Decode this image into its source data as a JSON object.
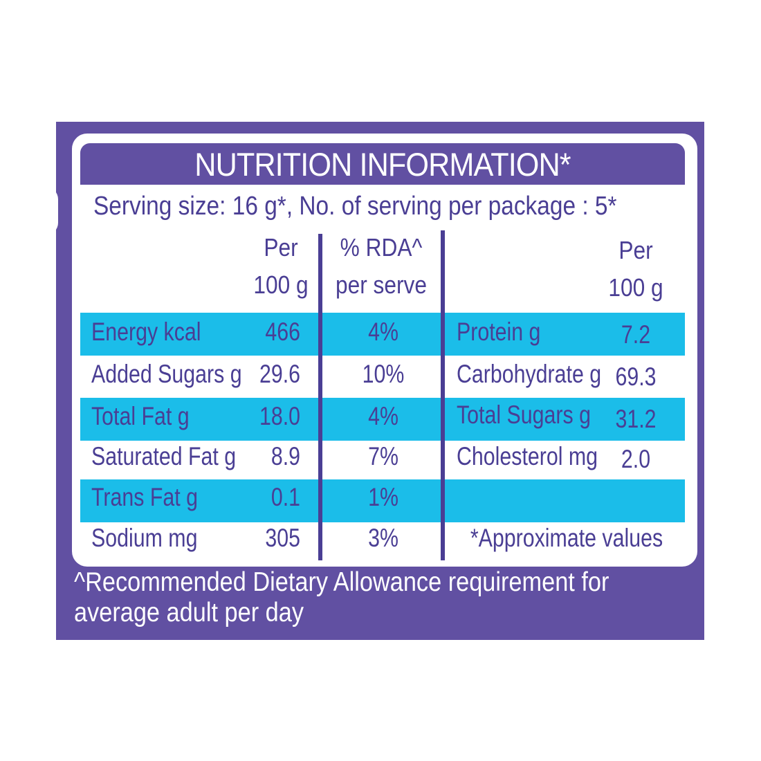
{
  "title": "NUTRITION INFORMATION*",
  "serving": "Serving size: 16 g*, No. of serving per package : 5*",
  "headers": {
    "left_per_1": "Per",
    "left_per_2": "100 g",
    "rda_1": "% RDA^",
    "rda_2": "per serve",
    "right_per_1": "Per",
    "right_per_2": "100 g"
  },
  "left_rows": [
    {
      "label": "Energy kcal",
      "value": "466",
      "rda": "4%"
    },
    {
      "label": "Added Sugars g",
      "value": "29.6",
      "rda": "10%"
    },
    {
      "label": "Total Fat g",
      "value": "18.0",
      "rda": "4%"
    },
    {
      "label": "Saturated Fat g",
      "value": "8.9",
      "rda": "7%"
    },
    {
      "label": "Trans Fat g",
      "value": "0.1",
      "rda": "1%"
    },
    {
      "label": "Sodium mg",
      "value": "305",
      "rda": "3%"
    }
  ],
  "right_rows": [
    {
      "label": "Protein g",
      "value": "7.2"
    },
    {
      "label": "Carbohydrate g",
      "value": "69.3"
    },
    {
      "label": "Total Sugars g",
      "value": "31.2"
    },
    {
      "label": "Cholesterol mg",
      "value": "2.0"
    }
  ],
  "approx_note": "*Approximate values",
  "footnote": "^Recommended Dietary Allowance requirement for\naverage adult per day",
  "colors": {
    "purple": "#6150a2",
    "text": "#4a3e94",
    "highlight": "#1bbde9"
  }
}
